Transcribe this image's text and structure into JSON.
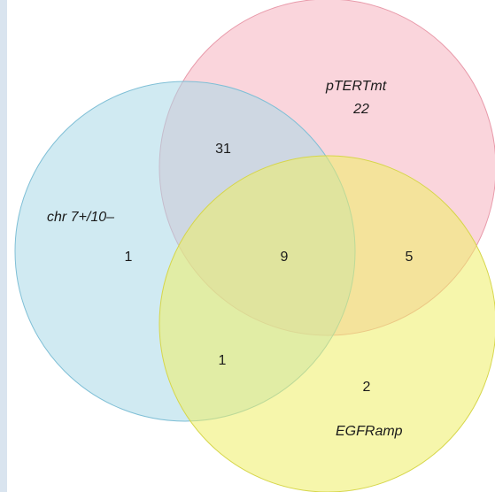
{
  "sets": [
    {
      "key": "pterr",
      "label_line1": "pTERTmt",
      "label_line2": "22",
      "color": "#f6b3c0"
    },
    {
      "key": "chr",
      "label": "chr 7+/10–",
      "color": "#a9d8e8"
    },
    {
      "key": "egfr",
      "label": "EGFRamp",
      "color": "#eeee66"
    }
  ],
  "regions": {
    "chr_only": "1",
    "chr_pterr": "31",
    "all_three": "9",
    "pterr_egfr": "5",
    "chr_egfr": "1",
    "egfr_only": "2"
  },
  "colors": {
    "side_strip": "#d9e4ef",
    "pterr_stroke": "#e89aaa",
    "chr_stroke": "#7fbfd6",
    "egfr_stroke": "#d6d64a"
  }
}
